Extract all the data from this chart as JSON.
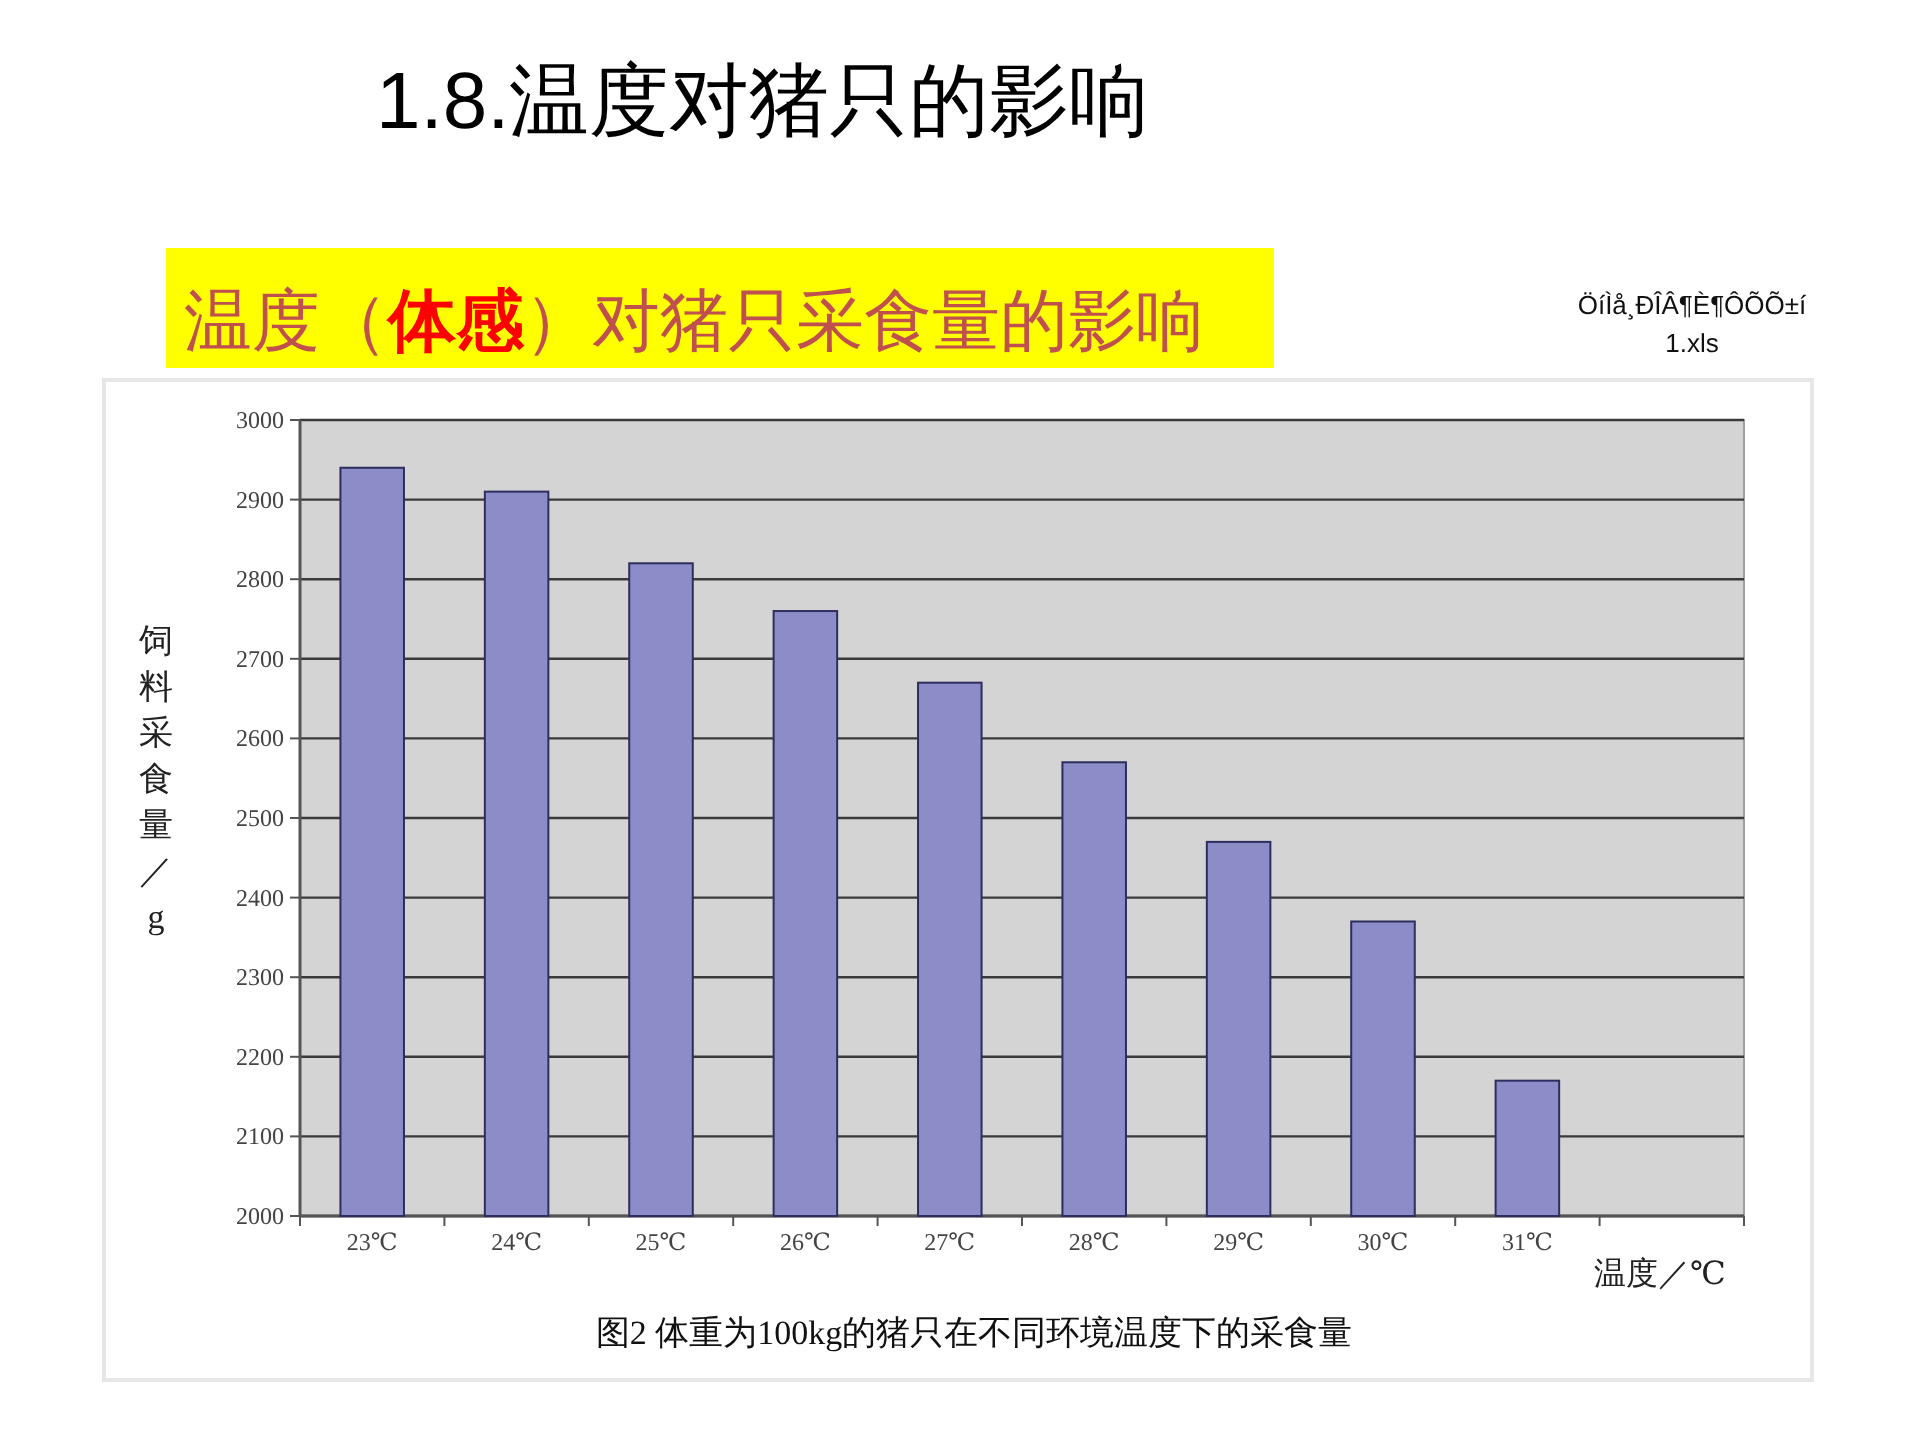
{
  "chart_data": {
    "type": "bar",
    "title": "1.8.温度对猪只的影响",
    "subtitle": "温度（体感）对猪只采食量的影响",
    "xlabel": "温度／℃",
    "ylabel": "饲料采食量／g",
    "categories": [
      "23℃",
      "24℃",
      "25℃",
      "26℃",
      "27℃",
      "28℃",
      "29℃",
      "30℃",
      "31℃",
      null
    ],
    "values": [
      2940,
      2910,
      2820,
      2760,
      2670,
      2570,
      2470,
      2370,
      2170,
      null
    ],
    "color": "#8c8cc8",
    "ylim": [
      2000,
      3000
    ],
    "yticks": [
      2000,
      2100,
      2200,
      2300,
      2400,
      2500,
      2600,
      2700,
      2800,
      2900,
      3000
    ],
    "grid": "y",
    "annotations": [
      "图2 体重为100kg的猪只在不同环境温度下的采食量",
      "ÖíÌå¸ÐÎÂ¶È¶ÔÕÕ±í 1.xls"
    ]
  }
}
